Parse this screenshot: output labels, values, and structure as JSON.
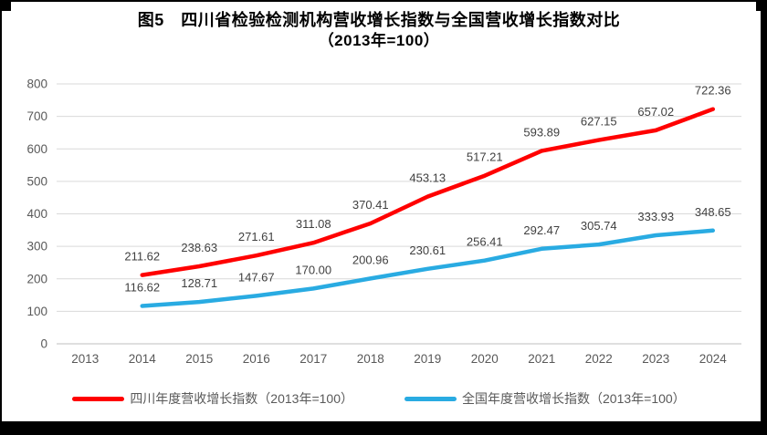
{
  "chart_data": {
    "type": "line",
    "title": "图5　四川省检验检测机构营收增长指数与全国营收增长指数对比",
    "subtitle": "（2013年=100）",
    "categories": [
      "2013",
      "2014",
      "2015",
      "2016",
      "2017",
      "2018",
      "2019",
      "2020",
      "2021",
      "2022",
      "2023",
      "2024"
    ],
    "series": [
      {
        "name": "四川年度营收增长指数（2013年=100）",
        "color": "#FF0000",
        "values": [
          null,
          211.62,
          238.63,
          271.61,
          311.08,
          370.41,
          453.13,
          517.21,
          593.89,
          627.15,
          657.02,
          722.36
        ]
      },
      {
        "name": "全国年度营收增长指数（2013年=100）",
        "color": "#29ABE2",
        "values": [
          null,
          116.62,
          128.71,
          147.67,
          170.0,
          200.96,
          230.61,
          256.41,
          292.47,
          305.74,
          333.93,
          348.65
        ]
      }
    ],
    "ylim": [
      0,
      800
    ],
    "ytick_step": 100,
    "yticks": [
      "0",
      "100",
      "200",
      "300",
      "400",
      "500",
      "600",
      "700",
      "800"
    ],
    "grid": true,
    "legend_position": "bottom",
    "data_labels": true,
    "data_label_decimals": 2
  },
  "colors": {
    "grid": "#D9D9D9",
    "axis": "#BFBFBF",
    "tick_label": "#595959",
    "data_label": "#404040",
    "title": "#000000",
    "frame": "#000000"
  }
}
